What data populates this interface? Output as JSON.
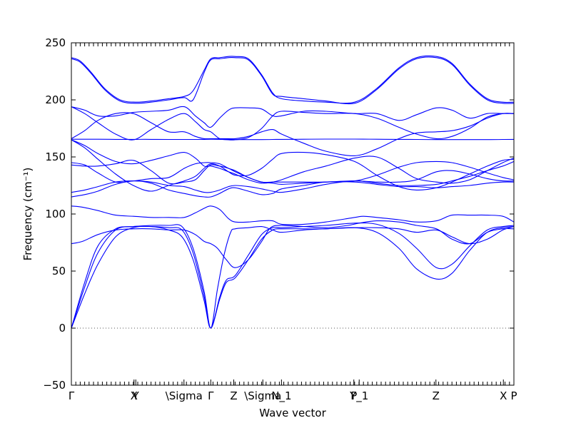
{
  "chart_data": {
    "type": "line",
    "xlabel": "Wave vector",
    "ylabel": "Frequency (cm⁻¹)",
    "ylim": [
      -50,
      250
    ],
    "yticks": [
      -50,
      0,
      50,
      100,
      150,
      200,
      250
    ],
    "zero_line": {
      "y": 0,
      "style": "dotted"
    },
    "high_symmetry_points": [
      {
        "label": "Γ",
        "x": 0.0
      },
      {
        "label": "X",
        "x": 0.2831
      },
      {
        "label": "Y",
        "x": 0.2911
      },
      {
        "label": "\\Sigma",
        "x": 0.5089
      },
      {
        "label": "Γ",
        "x": 0.63
      },
      {
        "label": "Z",
        "x": 0.7339
      },
      {
        "label": "\\Sigma",
        "x": 0.8653
      },
      {
        "label": "N_1",
        "x": 0.9496
      },
      {
        "label": "P",
        "x": 1.2766
      },
      {
        "label": "Y_1",
        "x": 1.3008
      },
      {
        "label": "Z",
        "x": 1.6476
      },
      {
        "label": "X",
        "x": 1.9524
      },
      {
        "label": "P",
        "x": 2.0
      }
    ],
    "series": [
      {
        "x": [
          0.0,
          0.06,
          0.12,
          0.2,
          0.28,
          0.36,
          0.44,
          0.5,
          0.55,
          0.6,
          0.63,
          0.67,
          0.7,
          0.74,
          0.8,
          0.86,
          0.91,
          0.95,
          1.05,
          1.15,
          1.28,
          1.38,
          1.48,
          1.56,
          1.65,
          1.72,
          1.8,
          1.88,
          1.95,
          2.0
        ],
        "y": [
          0,
          30,
          56,
          80,
          88,
          89,
          86,
          80,
          60,
          24,
          0,
          25,
          40,
          44,
          60,
          78,
          86,
          87,
          87,
          87,
          88,
          84,
          70,
          52,
          43,
          48,
          68,
          84,
          88,
          89
        ]
      },
      {
        "x": [
          0.0,
          0.06,
          0.12,
          0.2,
          0.28,
          0.36,
          0.44,
          0.5,
          0.55,
          0.6,
          0.63,
          0.67,
          0.7,
          0.74,
          0.8,
          0.86,
          0.91,
          0.95,
          1.05,
          1.15,
          1.28,
          1.38,
          1.48,
          1.56,
          1.65,
          1.72,
          1.8,
          1.88,
          1.95,
          2.0
        ],
        "y": [
          0,
          36,
          66,
          86,
          89,
          89,
          88,
          86,
          66,
          28,
          0,
          27,
          42,
          46,
          64,
          82,
          88,
          88,
          89,
          90,
          92,
          91,
          83,
          70,
          53,
          56,
          72,
          86,
          89,
          90
        ]
      },
      {
        "x": [
          0.0,
          0.06,
          0.12,
          0.2,
          0.28,
          0.36,
          0.44,
          0.5,
          0.55,
          0.6,
          0.63,
          0.66,
          0.69,
          0.72,
          0.74,
          0.8,
          0.86,
          0.91,
          0.95,
          1.05,
          1.15,
          1.28,
          1.38,
          1.48,
          1.56,
          1.65,
          1.72,
          1.8,
          1.88,
          1.95,
          2.0
        ],
        "y": [
          0,
          40,
          72,
          87,
          89,
          90,
          90,
          89,
          70,
          32,
          0,
          34,
          64,
          84,
          87,
          88,
          89,
          86,
          84,
          86,
          87,
          88,
          88,
          87,
          84,
          86,
          80,
          74,
          78,
          86,
          89
        ]
      },
      {
        "x": [
          0.0,
          0.05,
          0.12,
          0.2,
          0.28,
          0.36,
          0.44,
          0.51,
          0.56,
          0.6,
          0.63,
          0.66,
          0.7,
          0.74,
          0.8,
          0.86,
          0.9,
          0.95,
          1.05,
          1.15,
          1.25,
          1.3,
          1.38,
          1.48,
          1.56,
          1.65,
          1.72,
          1.8,
          1.88,
          1.95,
          2.0
        ],
        "y": [
          74,
          76,
          82,
          86,
          87,
          87,
          86,
          86,
          82,
          76,
          74,
          70,
          60,
          53,
          60,
          76,
          88,
          90,
          89,
          88,
          90,
          92,
          94,
          93,
          90,
          87,
          78,
          74,
          84,
          87,
          87
        ]
      },
      {
        "x": [
          0.0,
          0.05,
          0.12,
          0.2,
          0.28,
          0.36,
          0.44,
          0.51,
          0.56,
          0.6,
          0.63,
          0.67,
          0.71,
          0.74,
          0.8,
          0.86,
          0.91,
          0.95,
          1.05,
          1.15,
          1.28,
          1.32,
          1.38,
          1.48,
          1.56,
          1.65,
          1.72,
          1.8,
          1.88,
          1.95,
          2.0
        ],
        "y": [
          107,
          106,
          103,
          99,
          98,
          97,
          97,
          97,
          101,
          105,
          107,
          104,
          96,
          93,
          93,
          94,
          94,
          91,
          91,
          93,
          97,
          98,
          97,
          95,
          93,
          94,
          99,
          99,
          99,
          98,
          93
        ]
      },
      {
        "x": [
          0.0,
          0.06,
          0.12,
          0.2,
          0.28,
          0.36,
          0.44,
          0.51,
          0.56,
          0.6,
          0.63,
          0.67,
          0.71,
          0.74,
          0.8,
          0.86,
          0.91,
          0.95,
          1.05,
          1.15,
          1.28,
          1.38,
          1.48,
          1.56,
          1.65,
          1.72,
          1.8,
          1.88,
          1.95,
          2.0
        ],
        "y": [
          115,
          117,
          120,
          126,
          129,
          127,
          121,
          118,
          116,
          115,
          115,
          118,
          122,
          123,
          120,
          117,
          118,
          122,
          125,
          128,
          128,
          126,
          124,
          124,
          123,
          124,
          125,
          127,
          128,
          128
        ]
      },
      {
        "x": [
          0.0,
          0.06,
          0.12,
          0.2,
          0.28,
          0.36,
          0.44,
          0.51,
          0.56,
          0.6,
          0.63,
          0.67,
          0.71,
          0.74,
          0.8,
          0.86,
          0.91,
          0.95,
          1.05,
          1.15,
          1.28,
          1.38,
          1.48,
          1.56,
          1.65,
          1.72,
          1.8,
          1.88,
          1.95,
          2.0
        ],
        "y": [
          119,
          121,
          124,
          128,
          129,
          128,
          125,
          124,
          121,
          119,
          119,
          121,
          124,
          125,
          124,
          122,
          120,
          119,
          122,
          126,
          129,
          127,
          125,
          125,
          126,
          129,
          133,
          138,
          142,
          146
        ]
      },
      {
        "x": [
          0.0,
          0.06,
          0.12,
          0.2,
          0.28,
          0.36,
          0.44,
          0.51,
          0.56,
          0.6,
          0.63,
          0.67,
          0.71,
          0.74,
          0.8,
          0.86,
          0.91,
          0.95,
          1.05,
          1.15,
          1.28,
          1.38,
          1.48,
          1.56,
          1.65,
          1.72,
          1.8,
          1.88,
          1.95,
          2.0
        ],
        "y": [
          143,
          142,
          142,
          144,
          147,
          138,
          127,
          128,
          130,
          138,
          143,
          142,
          140,
          137,
          132,
          128,
          128,
          128,
          128,
          128,
          129,
          128,
          128,
          130,
          137,
          138,
          135,
          131,
          129,
          129
        ]
      },
      {
        "x": [
          0.0,
          0.06,
          0.12,
          0.2,
          0.28,
          0.36,
          0.44,
          0.51,
          0.56,
          0.6,
          0.63,
          0.67,
          0.71,
          0.74,
          0.8,
          0.86,
          0.91,
          0.95,
          1.05,
          1.15,
          1.28,
          1.38,
          1.48,
          1.56,
          1.65,
          1.72,
          1.8,
          1.88,
          1.95,
          2.0
        ],
        "y": [
          145,
          143,
          136,
          128,
          129,
          131,
          132,
          140,
          144,
          145,
          145,
          144,
          140,
          138,
          132,
          128,
          127,
          126,
          127,
          128,
          129,
          134,
          141,
          145,
          146,
          145,
          141,
          136,
          132,
          130
        ]
      },
      {
        "x": [
          0.0,
          0.06,
          0.12,
          0.2,
          0.28,
          0.36,
          0.44,
          0.51,
          0.56,
          0.6,
          0.63,
          0.67,
          0.71,
          0.74,
          0.8,
          0.86,
          0.91,
          0.95,
          1.05,
          1.15,
          1.28,
          1.38,
          1.48,
          1.56,
          1.65,
          1.72,
          1.8,
          1.88,
          1.95,
          2.0
        ],
        "y": [
          165,
          158,
          148,
          135,
          125,
          120,
          125,
          129,
          133,
          140,
          144,
          142,
          137,
          134,
          134,
          140,
          148,
          153,
          154,
          152,
          146,
          134,
          124,
          121,
          123,
          128,
          135,
          142,
          147,
          148
        ]
      },
      {
        "x": [
          0.0,
          0.06,
          0.12,
          0.2,
          0.28,
          0.36,
          0.44,
          0.51,
          0.56,
          0.6,
          0.63,
          0.67,
          0.71,
          0.74,
          0.8,
          0.86,
          0.91,
          0.95,
          1.05,
          1.15,
          1.28,
          1.38,
          1.48,
          1.56,
          1.65,
          1.72,
          1.8,
          1.88,
          1.95,
          2.0
        ],
        "y": [
          165,
          160,
          153,
          146,
          144,
          147,
          151,
          154,
          149,
          142,
          142,
          140,
          137,
          135,
          130,
          127,
          128,
          130,
          137,
          142,
          149,
          150,
          140,
          131,
          128,
          127,
          130,
          138,
          145,
          149
        ]
      },
      {
        "x": [
          0.0,
          0.06,
          0.12,
          0.2,
          0.28,
          0.36,
          0.44,
          0.51,
          0.56,
          0.6,
          0.63,
          0.67,
          0.71,
          0.74,
          0.8,
          0.86,
          0.91,
          0.95,
          1.05,
          1.15,
          1.28,
          1.38,
          1.48,
          1.56,
          1.65,
          1.72,
          1.8,
          1.88,
          1.95,
          2.0
        ],
        "y": [
          165.5,
          165.5,
          165.5,
          165.4,
          165.4,
          165.4,
          165.3,
          165.3,
          165.3,
          165.4,
          165.5,
          165.4,
          165.3,
          165.2,
          165.2,
          165.2,
          165.3,
          165.4,
          165.5,
          165.6,
          165.6,
          165.5,
          165.4,
          165.3,
          165.2,
          165.2,
          165.2,
          165.2,
          165.3,
          165.4
        ]
      },
      {
        "x": [
          0.0,
          0.06,
          0.12,
          0.2,
          0.28,
          0.36,
          0.44,
          0.51,
          0.56,
          0.6,
          0.63,
          0.67,
          0.71,
          0.74,
          0.8,
          0.86,
          0.91,
          0.95,
          1.05,
          1.15,
          1.28,
          1.38,
          1.48,
          1.56,
          1.65,
          1.72,
          1.8,
          1.88,
          1.95,
          2.0
        ],
        "y": [
          166,
          173,
          182,
          188,
          188,
          180,
          172,
          172,
          168,
          166,
          166,
          166,
          166,
          166,
          168,
          172,
          174,
          170,
          162,
          155,
          151,
          157,
          166,
          171,
          172,
          173,
          177,
          184,
          188,
          188
        ]
      },
      {
        "x": [
          0.0,
          0.06,
          0.12,
          0.2,
          0.28,
          0.36,
          0.44,
          0.51,
          0.56,
          0.6,
          0.63,
          0.67,
          0.71,
          0.74,
          0.8,
          0.86,
          0.91,
          0.95,
          1.05,
          1.15,
          1.28,
          1.38,
          1.48,
          1.56,
          1.65,
          1.72,
          1.8,
          1.88,
          1.95,
          2.0
        ],
        "y": [
          194,
          188,
          180,
          170,
          165,
          174,
          183,
          188,
          181,
          174,
          172,
          166,
          165,
          165,
          167,
          175,
          186,
          190,
          189,
          188,
          188,
          184,
          176,
          170,
          166,
          168,
          175,
          185,
          188,
          188
        ]
      },
      {
        "x": [
          0.0,
          0.06,
          0.12,
          0.2,
          0.28,
          0.36,
          0.44,
          0.51,
          0.56,
          0.6,
          0.63,
          0.67,
          0.71,
          0.74,
          0.8,
          0.86,
          0.91,
          0.95,
          1.05,
          1.15,
          1.28,
          1.38,
          1.48,
          1.56,
          1.65,
          1.72,
          1.8,
          1.88,
          1.95,
          2.0
        ],
        "y": [
          194,
          191,
          186,
          186,
          189,
          190,
          191,
          194,
          186,
          180,
          176,
          184,
          191,
          193,
          193,
          192,
          186,
          186,
          190,
          190,
          188,
          188,
          182,
          187,
          193,
          191,
          184,
          188,
          188,
          188
        ]
      },
      {
        "x": [
          0.0,
          0.04,
          0.09,
          0.15,
          0.22,
          0.29,
          0.36,
          0.44,
          0.51,
          0.55,
          0.6,
          0.63,
          0.67,
          0.71,
          0.74,
          0.8,
          0.86,
          0.91,
          0.95,
          1.05,
          1.15,
          1.28,
          1.38,
          1.48,
          1.56,
          1.65,
          1.72,
          1.8,
          1.88,
          1.95,
          2.0
        ],
        "y": [
          237,
          234,
          224,
          210,
          200,
          198,
          199,
          201,
          203,
          208,
          226,
          236,
          237,
          238,
          238,
          236,
          222,
          206,
          201,
          199,
          198,
          198,
          210,
          228,
          237,
          238,
          232,
          214,
          201,
          198,
          198
        ]
      },
      {
        "x": [
          0.0,
          0.04,
          0.09,
          0.15,
          0.22,
          0.29,
          0.36,
          0.44,
          0.51,
          0.55,
          0.6,
          0.63,
          0.67,
          0.71,
          0.74,
          0.8,
          0.86,
          0.91,
          0.95,
          1.05,
          1.15,
          1.28,
          1.38,
          1.48,
          1.56,
          1.65,
          1.72,
          1.8,
          1.88,
          1.95,
          2.0
        ],
        "y": [
          236,
          233,
          223,
          209,
          199,
          197,
          198,
          200,
          202,
          200,
          224,
          235,
          236,
          237,
          237,
          235,
          221,
          205,
          203,
          201,
          199,
          197,
          209,
          227,
          236,
          237,
          231,
          213,
          200,
          197,
          197
        ]
      }
    ]
  }
}
